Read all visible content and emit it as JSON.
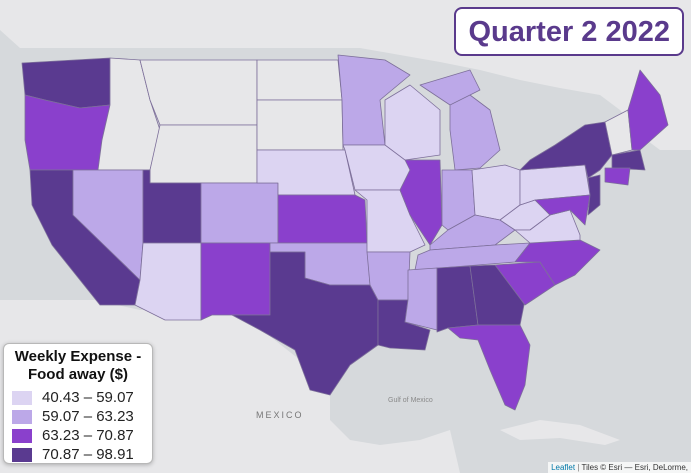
{
  "map": {
    "title": "Quarter 2 2022",
    "base_labels": {
      "mexico": "MEXICO",
      "gulf": "Gulf of Mexico"
    },
    "legend": {
      "title": "Weekly Expense -\nFood away ($)",
      "classes": [
        {
          "label": "40.43 – 59.07",
          "color": "#dcd4f2"
        },
        {
          "label": "59.07 – 63.23",
          "color": "#bca8e8"
        },
        {
          "label": "63.23 – 70.87",
          "color": "#8a40cc"
        },
        {
          "label": "70.87 – 98.91",
          "color": "#5a3a90"
        }
      ]
    },
    "attribution": {
      "link": "Leaflet",
      "separator": " | ",
      "text": "Tiles © Esri — Esri, DeLorme,"
    }
  },
  "colors": {
    "land": "#e6e6e8",
    "water": "#d4d8dc",
    "border": "#7d6f9a",
    "title": "#5a3a8c"
  }
}
